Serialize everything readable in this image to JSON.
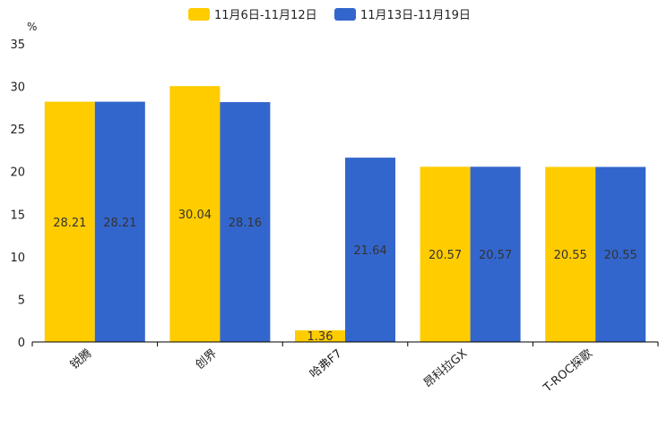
{
  "chart_data": {
    "type": "bar",
    "ylabel": "%",
    "ylim": [
      0,
      35
    ],
    "yticks": [
      0,
      5,
      10,
      15,
      20,
      25,
      30,
      35
    ],
    "categories": [
      "锐腾",
      "创界",
      "哈弗F7",
      "昂科拉GX",
      "T-ROC探歌"
    ],
    "series": [
      {
        "name": "11月6日-11月12日",
        "color": "#FFCC00",
        "values": [
          28.21,
          30.04,
          1.36,
          20.57,
          20.55
        ],
        "labels": [
          "28.21",
          "30.04",
          "1.36",
          "20.57",
          "20.55"
        ]
      },
      {
        "name": "11月13日-11月19日",
        "color": "#3366CC",
        "values": [
          28.21,
          28.16,
          21.64,
          20.57,
          20.55
        ],
        "labels": [
          "28.21",
          "28.16",
          "21.64",
          "20.57",
          "20.55"
        ]
      }
    ],
    "legend": "top-center",
    "grid": false
  }
}
